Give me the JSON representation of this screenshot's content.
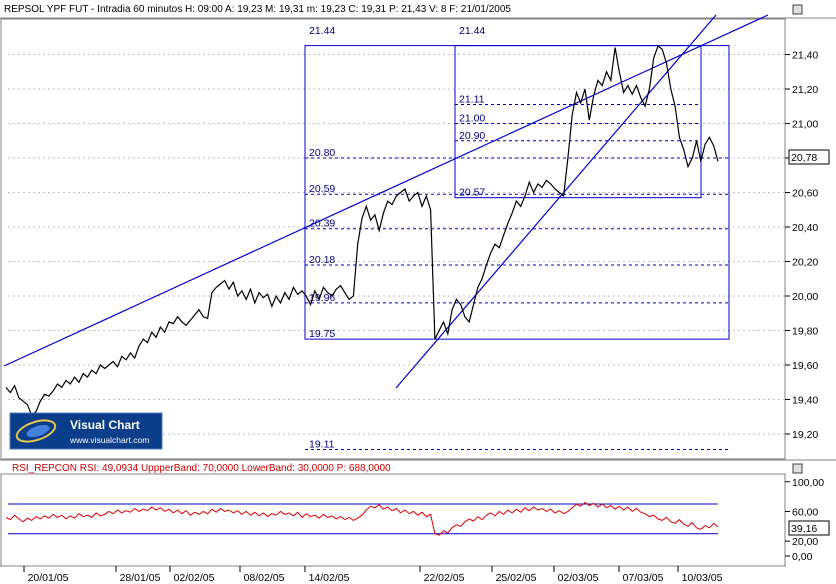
{
  "price_header": {
    "text": "REPSOL YPF FUT - Intradia 60 minutos  H: 09:00  A: 19,23  M: 19,31  m: 19,23  C: 19,31  P: 21,43  V: 8  F: 21/01/2005",
    "p_color": "#ff0000"
  },
  "rsi_header": {
    "text": "RSI_REPCON  RSI: 49,0934  UppperBand: 70,0000  LowerBand: 30,0000  P: 688,0000",
    "color": "#cc0000"
  },
  "logo": {
    "brand": "Visual Chart",
    "url": "www.visualchart.com"
  },
  "colors": {
    "price": "#000000",
    "rsi": "#dd0000",
    "lines": "#0000cc",
    "bg": "#ffffff"
  },
  "chart_data": [
    {
      "type": "line",
      "name": "REPSOL YPF FUT",
      "ylim": [
        19.1,
        21.55
      ],
      "y_ticks": [
        "21,40",
        "21,20",
        "21,00",
        "20,80",
        "20,60",
        "20,40",
        "20,20",
        "20,00",
        "19,80",
        "19,60",
        "19,40",
        "19,20"
      ],
      "x_ticks": [
        "20/01/05",
        "28/01/05",
        "02/02/05",
        "08/02/05",
        "14/02/05",
        "22/02/05",
        "25/02/05",
        "02/03/05",
        "07/03/05",
        "10/03/05"
      ],
      "last_value_label": "20,78",
      "fib_box_1": {
        "levels": [
          21.44,
          20.8,
          20.59,
          20.39,
          20.18,
          19.96,
          19.75,
          19.11
        ],
        "labels": [
          "21.44",
          "20.80",
          "20.59",
          "20.39",
          "20.18",
          "19.96",
          "19.75",
          "19.11"
        ]
      },
      "fib_box_2": {
        "levels": [
          21.44,
          21.11,
          21.0,
          20.9,
          20.57
        ],
        "labels": [
          "21.44",
          "21.11",
          "21.00",
          "20.90",
          "20.57"
        ]
      },
      "series": [
        {
          "values": [
            19.47,
            19.44,
            19.48,
            19.41,
            19.39,
            19.37,
            19.31,
            19.33,
            19.39,
            19.43,
            19.42,
            19.45,
            19.49,
            19.47,
            19.51,
            19.49,
            19.53,
            19.5,
            19.55,
            19.53,
            19.57,
            19.55,
            19.6,
            19.58,
            19.6,
            19.62,
            19.59,
            19.65,
            19.63,
            19.67,
            19.64,
            19.71,
            19.75,
            19.73,
            19.79,
            19.76,
            19.82,
            19.79,
            19.85,
            19.84,
            19.88,
            19.85,
            19.83,
            19.86,
            19.89,
            19.92,
            19.88,
            19.87,
            20.02,
            20.05,
            20.07,
            20.09,
            20.04,
            20.08,
            20.0,
            20.03,
            19.98,
            20.04,
            19.96,
            20.02,
            19.99,
            20.01,
            19.94,
            20.0,
            19.96,
            20.02,
            19.98,
            20.05,
            20.01,
            20.03,
            20.0,
            19.95,
            20.03,
            19.98,
            20.05,
            20.02,
            20.0,
            20.04,
            20.06,
            20.02,
            19.98,
            20.0,
            20.3,
            20.45,
            20.52,
            20.44,
            20.47,
            20.38,
            20.48,
            20.55,
            20.53,
            20.58,
            20.6,
            20.62,
            20.55,
            20.58,
            20.6,
            20.52,
            20.58,
            20.5,
            19.75,
            19.8,
            19.85,
            19.78,
            19.92,
            19.98,
            19.95,
            19.88,
            19.85,
            19.95,
            20.05,
            20.1,
            20.18,
            20.25,
            20.3,
            20.28,
            20.35,
            20.42,
            20.48,
            20.55,
            20.52,
            20.58,
            20.66,
            20.6,
            20.65,
            20.63,
            20.67,
            20.65,
            20.62,
            20.6,
            20.58,
            20.8,
            21.05,
            21.18,
            21.12,
            21.2,
            21.02,
            21.16,
            21.25,
            21.22,
            21.3,
            21.25,
            21.44,
            21.3,
            21.18,
            21.22,
            21.17,
            21.22,
            21.15,
            21.1,
            21.2,
            21.38,
            21.45,
            21.43,
            21.35,
            21.2,
            21.1,
            20.92,
            20.85,
            20.75,
            20.8,
            20.9,
            20.78,
            20.88,
            20.92,
            20.87,
            20.78
          ]
        }
      ]
    },
    {
      "type": "line",
      "name": "RSI_REPCON",
      "ylim": [
        0,
        110
      ],
      "y_ticks": [
        "100,00",
        "60,00",
        "20,00",
        "0,00"
      ],
      "upper_band": 70,
      "lower_band": 30,
      "last_value_label": "39,16",
      "series": [
        {
          "values": [
            52,
            49,
            55,
            50,
            46,
            51,
            48,
            53,
            50,
            54,
            51,
            56,
            52,
            55,
            50,
            54,
            51,
            57,
            53,
            55,
            52,
            58,
            54,
            56,
            60,
            57,
            62,
            58,
            61,
            59,
            64,
            60,
            63,
            61,
            66,
            62,
            65,
            60,
            63,
            58,
            62,
            57,
            61,
            55,
            59,
            56,
            60,
            57,
            63,
            59,
            64,
            60,
            62,
            58,
            61,
            56,
            60,
            55,
            59,
            54,
            58,
            53,
            57,
            55,
            60,
            56,
            58,
            54,
            59,
            52,
            57,
            53,
            55,
            51,
            56,
            52,
            54,
            50,
            53,
            49,
            52,
            48,
            51,
            55,
            62,
            67,
            65,
            69,
            63,
            66,
            61,
            64,
            58,
            62,
            57,
            60,
            55,
            59,
            53,
            56,
            30,
            28,
            34,
            31,
            38,
            42,
            40,
            46,
            50,
            47,
            53,
            49,
            55,
            58,
            54,
            60,
            56,
            62,
            58,
            63,
            59,
            65,
            61,
            66,
            62,
            64,
            60,
            63,
            58,
            61,
            57,
            60,
            65,
            70,
            67,
            72,
            68,
            71,
            66,
            70,
            65,
            68,
            63,
            67,
            62,
            66,
            60,
            64,
            59,
            57,
            53,
            55,
            50,
            48,
            52,
            46,
            44,
            49,
            43,
            40,
            45,
            38,
            36,
            41,
            38,
            44,
            39
          ]
        }
      ]
    }
  ]
}
